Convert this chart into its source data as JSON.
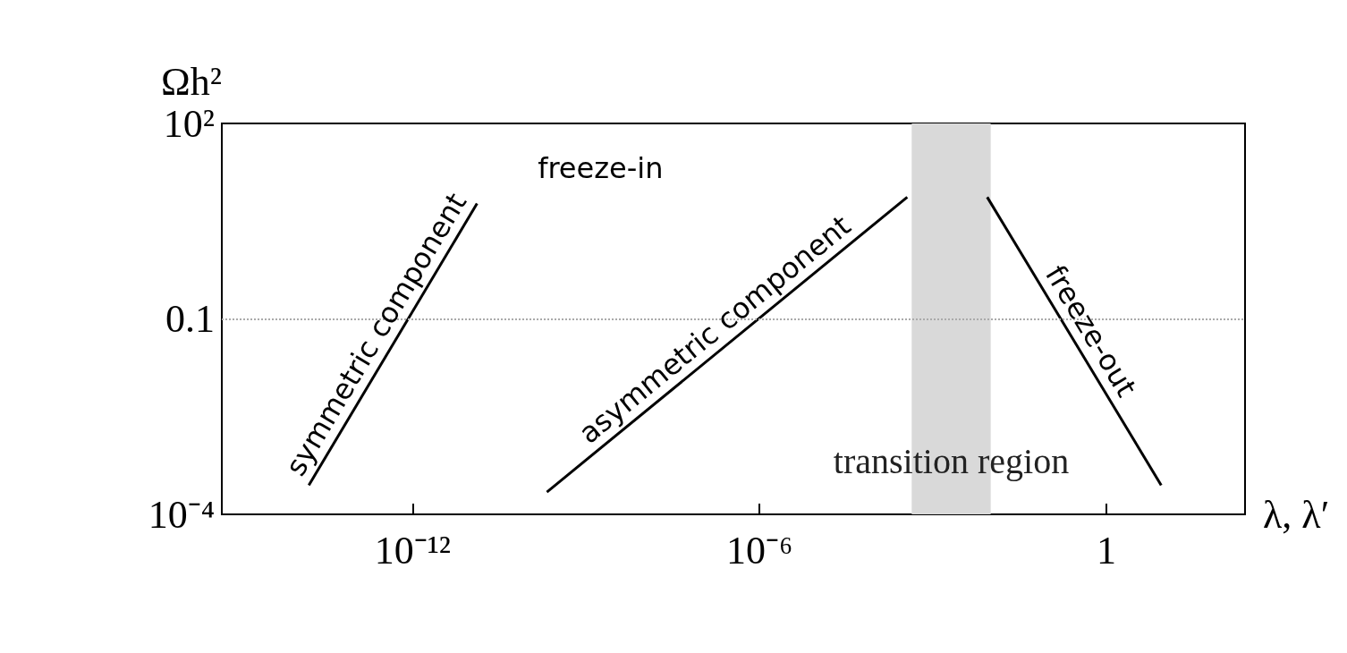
{
  "chart_data": {
    "type": "line",
    "xlabel": "λ, λ′",
    "ylabel": "Ωh²",
    "log": "xy",
    "grid": false,
    "xlim": [
      5e-16,
      251
    ],
    "xticks": [
      {
        "value": 1e-12,
        "label": "10⁻¹²"
      },
      {
        "value": 1e-06,
        "label": "10⁻⁶"
      },
      1
    ],
    "ylim": [
      0.0001,
      100
    ],
    "yticks": [
      {
        "value": 0.0001,
        "label": "10⁻⁴"
      },
      0.1,
      {
        "value": 100,
        "label": "10²"
      }
    ],
    "series": [
      {
        "name": "symmetric component",
        "color": "#000000",
        "x": [
          1.6e-14,
          1.3e-11
        ],
        "values": [
          0.00028,
          5.9
        ]
      },
      {
        "name": "asymmetric component",
        "color": "#000000",
        "x": [
          2.1e-10,
          0.00036
        ],
        "values": [
          0.00022,
          7.4
        ]
      },
      {
        "name": "freeze-out",
        "color": "#000000",
        "x": [
          0.0087,
          8.9
        ],
        "values": [
          7.4,
          0.00028
        ]
      }
    ],
    "ref_lines": [
      {
        "axis": "y",
        "value": 0.1,
        "color": "#aaaaaa",
        "line_style": "dotted"
      }
    ],
    "bands": [
      {
        "axis": "x",
        "from": 0.00043,
        "to": 0.01,
        "label": "transition region",
        "color": "#d9d9d9"
      }
    ],
    "annotations": [
      "freeze-in"
    ]
  }
}
